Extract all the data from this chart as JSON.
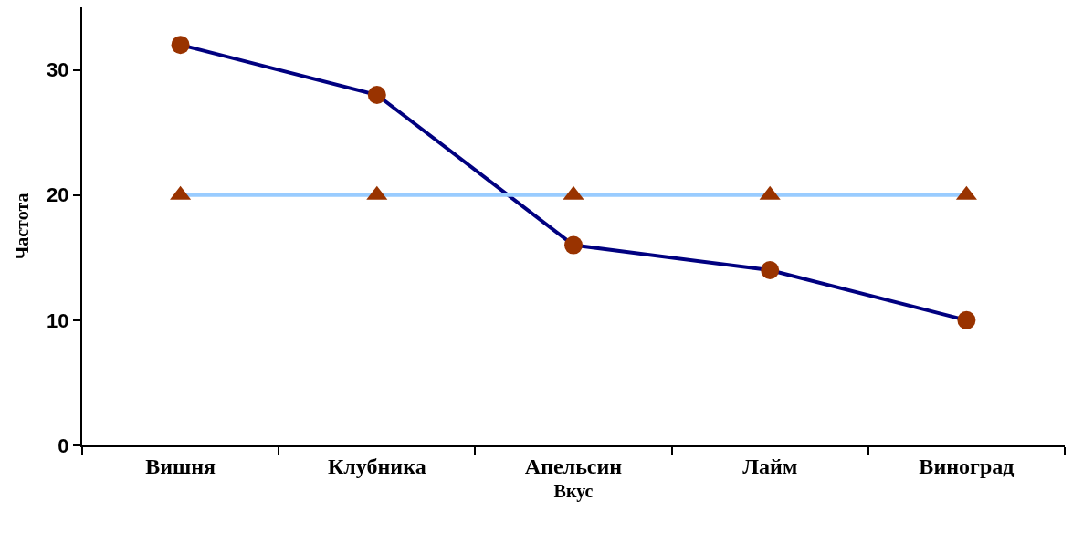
{
  "chart_data": {
    "type": "line",
    "xlabel": "Вкус",
    "ylabel": "Частота",
    "categories": [
      "Вишня",
      "Клубника",
      "Апельсин",
      "Лайм",
      "Виноград"
    ],
    "series": [
      {
        "color": "#000080",
        "colors": [
          "#993300",
          "#993300",
          "#993300",
          "#993300",
          "#993300"
        ],
        "marker": "circle",
        "values": [
          32,
          28,
          16,
          14,
          10
        ]
      },
      {
        "color": "#99ccff",
        "colors": [
          "#993300",
          "#993300",
          "#993300",
          "#993300",
          "#993300"
        ],
        "marker": "triangle",
        "values": [
          20,
          20,
          20,
          20,
          20
        ]
      }
    ],
    "ylim": [
      0,
      35
    ],
    "yticks": [
      0,
      10,
      20,
      30
    ],
    "grid": false,
    "line_style": "solid"
  }
}
